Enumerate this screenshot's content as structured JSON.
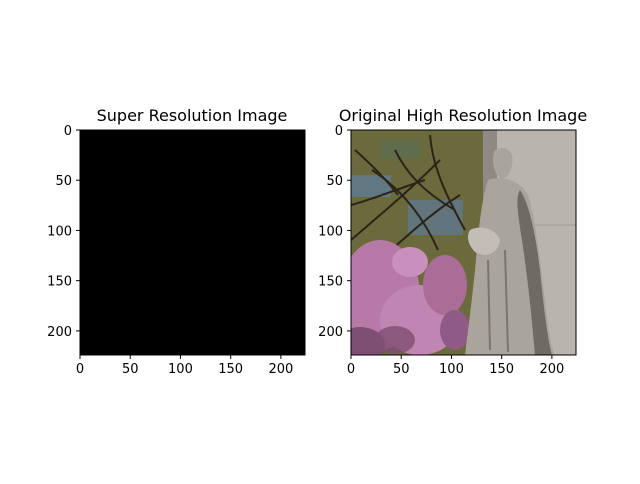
{
  "figure": {
    "background_color": "#ffffff",
    "panels": [
      {
        "title": "Super Resolution Image",
        "image_kind": "solid-black",
        "fill_color": "#000000",
        "xlim": [
          0,
          224
        ],
        "ylim": [
          224,
          0
        ],
        "x_ticks": [
          0,
          50,
          100,
          150,
          200
        ],
        "y_ticks": [
          0,
          50,
          100,
          150,
          200
        ]
      },
      {
        "title": "Original High Resolution Image",
        "image_kind": "photo-statue-with-blossoms",
        "xlim": [
          0,
          224
        ],
        "ylim": [
          224,
          0
        ],
        "x_ticks": [
          0,
          50,
          100,
          150,
          200
        ],
        "y_ticks": [
          0,
          50,
          100,
          150,
          200
        ],
        "colors": {
          "wall": "#b9b5ae",
          "wall_shadow": "#8e8a83",
          "statue": "#a9a49c",
          "statue_shadow": "#6e6a64",
          "sky": "#5f7a92",
          "foliage": "#6b6a3c",
          "branches": "#2b2418",
          "blossom": "#b77aa6",
          "blossom_dark": "#7e4f73"
        }
      }
    ]
  }
}
